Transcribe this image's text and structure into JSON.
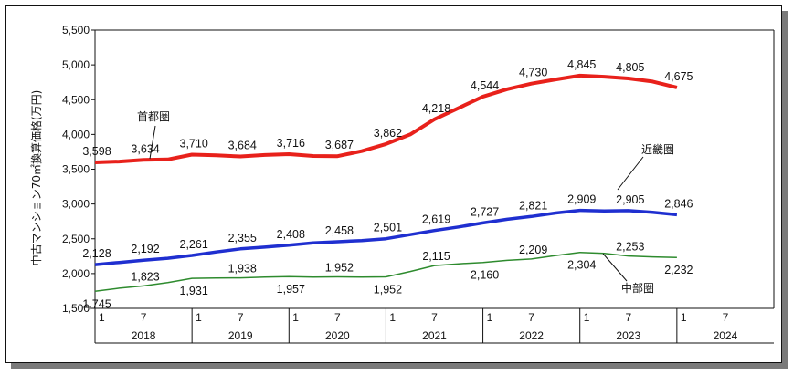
{
  "chart_data": {
    "type": "line",
    "title": "",
    "ylabel": "中古マンション70㎡換算価格(万円)",
    "ylim": [
      1500,
      5500
    ],
    "y_ticks": [
      "1,500",
      "2,000",
      "2,500",
      "3,000",
      "3,500",
      "4,000",
      "4,500",
      "5,000",
      "5,500"
    ],
    "x_month_ticks": [
      "1",
      "7",
      "1",
      "7",
      "1",
      "7",
      "1",
      "7",
      "1",
      "7",
      "1",
      "7",
      "1",
      "7"
    ],
    "x_year_labels": [
      "2018",
      "2019",
      "2020",
      "2021",
      "2022",
      "2023",
      "2024"
    ],
    "grid": false,
    "series": [
      {
        "name": "首都圏",
        "color": "#e8211b",
        "x": [
          "2018-01",
          "2018-04",
          "2018-07",
          "2018-10",
          "2019-01",
          "2019-04",
          "2019-07",
          "2019-10",
          "2020-01",
          "2020-04",
          "2020-07",
          "2020-10",
          "2021-01",
          "2021-04",
          "2021-07",
          "2021-10",
          "2022-01",
          "2022-04",
          "2022-07",
          "2022-10",
          "2023-01",
          "2023-04",
          "2023-07",
          "2023-10",
          "2024-01"
        ],
        "values": [
          3598,
          3610,
          3634,
          3640,
          3710,
          3700,
          3684,
          3705,
          3716,
          3690,
          3687,
          3760,
          3862,
          4000,
          4218,
          4380,
          4544,
          4650,
          4730,
          4790,
          4845,
          4830,
          4805,
          4760,
          4675
        ],
        "labeled_indices": [
          0,
          2,
          4,
          6,
          8,
          10,
          12,
          14,
          16,
          18,
          20,
          22,
          24
        ]
      },
      {
        "name": "近畿圏",
        "color": "#1f2fd0",
        "x": [
          "2018-01",
          "2018-04",
          "2018-07",
          "2018-10",
          "2019-01",
          "2019-04",
          "2019-07",
          "2019-10",
          "2020-01",
          "2020-04",
          "2020-07",
          "2020-10",
          "2021-01",
          "2021-04",
          "2021-07",
          "2021-10",
          "2022-01",
          "2022-04",
          "2022-07",
          "2022-10",
          "2023-01",
          "2023-04",
          "2023-07",
          "2023-10",
          "2024-01"
        ],
        "values": [
          2128,
          2160,
          2192,
          2220,
          2261,
          2310,
          2355,
          2380,
          2408,
          2440,
          2458,
          2475,
          2501,
          2560,
          2619,
          2670,
          2727,
          2780,
          2821,
          2870,
          2909,
          2900,
          2905,
          2880,
          2846
        ],
        "labeled_indices": [
          0,
          2,
          4,
          6,
          8,
          10,
          12,
          14,
          16,
          18,
          20,
          22,
          24
        ]
      },
      {
        "name": "中部圏",
        "color": "#2e8b2e",
        "x": [
          "2018-01",
          "2018-04",
          "2018-07",
          "2018-10",
          "2019-01",
          "2019-04",
          "2019-07",
          "2019-10",
          "2020-01",
          "2020-04",
          "2020-07",
          "2020-10",
          "2021-01",
          "2021-04",
          "2021-07",
          "2021-10",
          "2022-01",
          "2022-04",
          "2022-07",
          "2022-10",
          "2023-01",
          "2023-04",
          "2023-07",
          "2023-10",
          "2024-01"
        ],
        "values": [
          1745,
          1790,
          1823,
          1870,
          1931,
          1935,
          1938,
          1950,
          1957,
          1950,
          1952,
          1950,
          1952,
          2030,
          2115,
          2140,
          2160,
          2190,
          2209,
          2260,
          2304,
          2290,
          2253,
          2240,
          2232
        ],
        "labeled_indices": [
          0,
          2,
          4,
          6,
          8,
          10,
          12,
          14,
          16,
          18,
          20,
          22,
          24
        ]
      }
    ],
    "data_labels": {
      "首都圏": [
        "3,598",
        "3,634",
        "3,710",
        "3,684",
        "3,716",
        "3,687",
        "3,862",
        "4,218",
        "4,544",
        "4,730",
        "4,845",
        "4,805",
        "4,675"
      ],
      "近畿圏": [
        "2,128",
        "2,192",
        "2,261",
        "2,355",
        "2,408",
        "2,458",
        "2,501",
        "2,619",
        "2,727",
        "2,821",
        "2,909",
        "2,905",
        "2,846"
      ],
      "中部圏": [
        "1,745",
        "1,823",
        "1,931",
        "1,938",
        "1,957",
        "1,952",
        "1,952",
        "2,115",
        "2,160",
        "2,209",
        "2,304",
        "2,253",
        "2,232"
      ]
    }
  }
}
